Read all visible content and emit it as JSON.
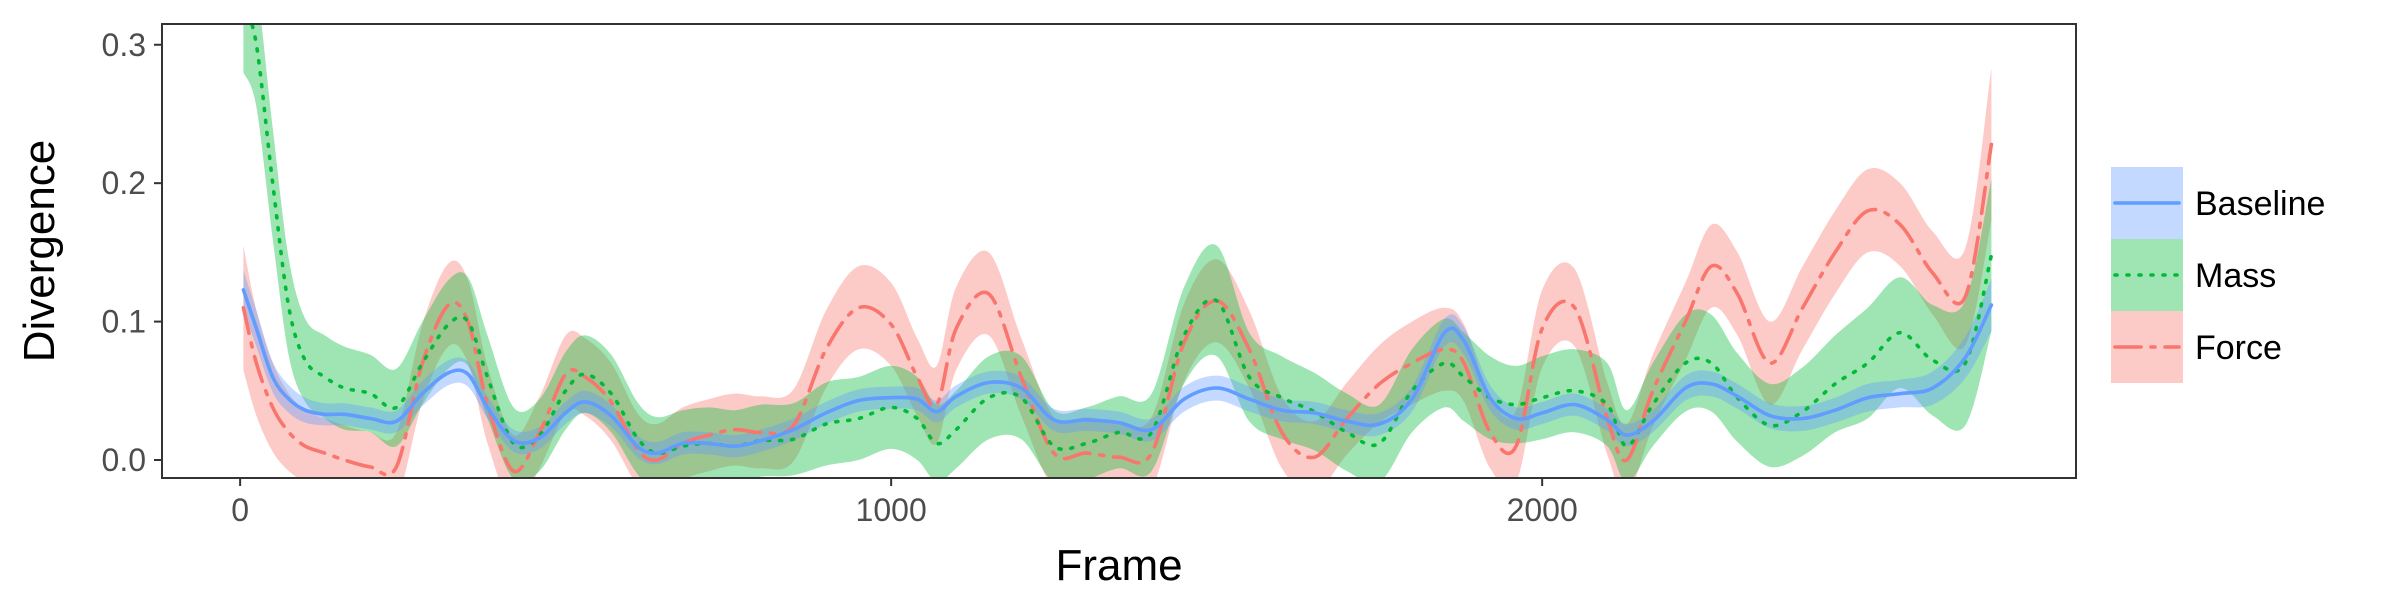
{
  "chart_data": {
    "type": "line",
    "title": "",
    "xlabel": "Frame",
    "ylabel": "Divergence",
    "xlim": [
      -120,
      2820
    ],
    "ylim": [
      -0.013,
      0.315
    ],
    "x_ticks": [
      0,
      1000,
      2000
    ],
    "x_tick_labels": [
      "0",
      "1000",
      "2000"
    ],
    "y_ticks": [
      0.0,
      0.1,
      0.2,
      0.3
    ],
    "y_tick_labels": [
      "0.0",
      "0.1",
      "0.2",
      "0.3"
    ],
    "grid": false,
    "legend_position": "right",
    "series": [
      {
        "name": "Baseline",
        "color": "#619CFF",
        "line_style": "solid",
        "x": [
          5,
          25,
          50,
          75,
          100,
          130,
          160,
          200,
          240,
          280,
          320,
          350,
          380,
          420,
          460,
          500,
          530,
          570,
          610,
          640,
          680,
          720,
          760,
          800,
          850,
          900,
          950,
          1000,
          1040,
          1070,
          1100,
          1150,
          1200,
          1250,
          1300,
          1350,
          1400,
          1450,
          1500,
          1550,
          1600,
          1650,
          1700,
          1750,
          1800,
          1850,
          1880,
          1920,
          1960,
          2000,
          2050,
          2100,
          2130,
          2170,
          2220,
          2260,
          2300,
          2350,
          2400,
          2450,
          2500,
          2550,
          2600,
          2650,
          2690
        ],
        "values": [
          0.123,
          0.095,
          0.06,
          0.044,
          0.036,
          0.033,
          0.033,
          0.03,
          0.028,
          0.048,
          0.063,
          0.062,
          0.038,
          0.014,
          0.016,
          0.034,
          0.042,
          0.032,
          0.01,
          0.005,
          0.012,
          0.012,
          0.01,
          0.014,
          0.022,
          0.034,
          0.043,
          0.045,
          0.044,
          0.035,
          0.046,
          0.056,
          0.052,
          0.029,
          0.029,
          0.027,
          0.022,
          0.044,
          0.052,
          0.044,
          0.036,
          0.034,
          0.028,
          0.026,
          0.044,
          0.092,
          0.086,
          0.045,
          0.03,
          0.034,
          0.04,
          0.029,
          0.018,
          0.028,
          0.052,
          0.055,
          0.046,
          0.032,
          0.03,
          0.036,
          0.045,
          0.048,
          0.052,
          0.074,
          0.112
        ],
        "band": [
          0.014,
          0.013,
          0.011,
          0.01,
          0.009,
          0.008,
          0.008,
          0.008,
          0.008,
          0.009,
          0.009,
          0.009,
          0.008,
          0.008,
          0.008,
          0.008,
          0.008,
          0.008,
          0.008,
          0.008,
          0.008,
          0.008,
          0.008,
          0.008,
          0.008,
          0.008,
          0.008,
          0.008,
          0.008,
          0.008,
          0.008,
          0.008,
          0.008,
          0.008,
          0.008,
          0.008,
          0.008,
          0.009,
          0.009,
          0.009,
          0.008,
          0.008,
          0.008,
          0.008,
          0.009,
          0.01,
          0.01,
          0.009,
          0.008,
          0.008,
          0.008,
          0.008,
          0.008,
          0.008,
          0.009,
          0.009,
          0.009,
          0.009,
          0.009,
          0.009,
          0.01,
          0.01,
          0.012,
          0.015,
          0.019
        ]
      },
      {
        "name": "Mass",
        "color": "#00BA38",
        "line_style": "dotted",
        "x": [
          5,
          25,
          50,
          75,
          100,
          130,
          160,
          200,
          240,
          280,
          320,
          350,
          380,
          420,
          460,
          500,
          530,
          570,
          610,
          640,
          680,
          720,
          760,
          800,
          850,
          900,
          950,
          1000,
          1040,
          1070,
          1100,
          1150,
          1200,
          1250,
          1300,
          1350,
          1400,
          1450,
          1500,
          1550,
          1600,
          1650,
          1700,
          1750,
          1800,
          1850,
          1880,
          1920,
          1960,
          2000,
          2050,
          2100,
          2130,
          2170,
          2220,
          2260,
          2300,
          2350,
          2400,
          2450,
          2500,
          2550,
          2600,
          2650,
          2690
        ],
        "values": [
          0.33,
          0.3,
          0.2,
          0.11,
          0.072,
          0.06,
          0.052,
          0.048,
          0.038,
          0.07,
          0.098,
          0.1,
          0.06,
          0.012,
          0.018,
          0.05,
          0.062,
          0.048,
          0.016,
          0.005,
          0.01,
          0.012,
          0.01,
          0.014,
          0.015,
          0.026,
          0.03,
          0.038,
          0.03,
          0.012,
          0.022,
          0.045,
          0.045,
          0.01,
          0.012,
          0.02,
          0.02,
          0.09,
          0.115,
          0.06,
          0.045,
          0.035,
          0.02,
          0.012,
          0.05,
          0.07,
          0.06,
          0.045,
          0.04,
          0.045,
          0.05,
          0.04,
          0.01,
          0.04,
          0.07,
          0.07,
          0.045,
          0.025,
          0.035,
          0.055,
          0.07,
          0.092,
          0.072,
          0.07,
          0.148
        ],
        "band": [
          0.05,
          0.045,
          0.04,
          0.035,
          0.03,
          0.03,
          0.03,
          0.028,
          0.028,
          0.03,
          0.032,
          0.032,
          0.03,
          0.026,
          0.026,
          0.028,
          0.028,
          0.028,
          0.026,
          0.026,
          0.026,
          0.026,
          0.026,
          0.026,
          0.026,
          0.03,
          0.03,
          0.03,
          0.03,
          0.028,
          0.028,
          0.03,
          0.03,
          0.026,
          0.026,
          0.026,
          0.028,
          0.035,
          0.04,
          0.032,
          0.03,
          0.028,
          0.028,
          0.028,
          0.03,
          0.032,
          0.032,
          0.03,
          0.028,
          0.03,
          0.03,
          0.03,
          0.026,
          0.03,
          0.035,
          0.035,
          0.032,
          0.03,
          0.032,
          0.035,
          0.04,
          0.04,
          0.04,
          0.045,
          0.055
        ]
      },
      {
        "name": "Force",
        "color": "#F8766D",
        "line_style": "dashdot",
        "x": [
          5,
          25,
          50,
          75,
          100,
          130,
          160,
          200,
          240,
          280,
          320,
          350,
          380,
          420,
          460,
          500,
          530,
          570,
          610,
          640,
          680,
          720,
          760,
          800,
          850,
          900,
          950,
          1000,
          1040,
          1070,
          1100,
          1150,
          1200,
          1250,
          1300,
          1350,
          1400,
          1450,
          1500,
          1550,
          1600,
          1650,
          1700,
          1750,
          1800,
          1850,
          1880,
          1920,
          1960,
          2000,
          2050,
          2100,
          2130,
          2170,
          2220,
          2260,
          2300,
          2350,
          2400,
          2450,
          2500,
          2550,
          2600,
          2650,
          2690
        ],
        "values": [
          0.11,
          0.07,
          0.038,
          0.02,
          0.01,
          0.005,
          0.0,
          -0.005,
          -0.005,
          0.07,
          0.112,
          0.1,
          0.04,
          -0.008,
          0.02,
          0.062,
          0.06,
          0.042,
          0.008,
          0.0,
          0.012,
          0.018,
          0.022,
          0.02,
          0.025,
          0.08,
          0.11,
          0.098,
          0.06,
          0.04,
          0.095,
          0.12,
          0.06,
          0.005,
          0.005,
          0.002,
          0.005,
          0.085,
          0.115,
          0.08,
          0.02,
          0.002,
          0.03,
          0.055,
          0.07,
          0.08,
          0.07,
          0.02,
          0.01,
          0.095,
          0.11,
          0.03,
          0.0,
          0.05,
          0.1,
          0.14,
          0.12,
          0.07,
          0.11,
          0.15,
          0.18,
          0.17,
          0.135,
          0.118,
          0.228
        ],
        "band": [
          0.045,
          0.038,
          0.032,
          0.028,
          0.026,
          0.025,
          0.025,
          0.025,
          0.025,
          0.028,
          0.03,
          0.03,
          0.028,
          0.026,
          0.026,
          0.028,
          0.028,
          0.028,
          0.026,
          0.026,
          0.026,
          0.026,
          0.026,
          0.026,
          0.026,
          0.028,
          0.03,
          0.03,
          0.028,
          0.028,
          0.03,
          0.03,
          0.028,
          0.026,
          0.026,
          0.026,
          0.026,
          0.028,
          0.03,
          0.028,
          0.026,
          0.026,
          0.026,
          0.028,
          0.03,
          0.03,
          0.028,
          0.026,
          0.026,
          0.028,
          0.028,
          0.026,
          0.026,
          0.026,
          0.028,
          0.03,
          0.03,
          0.03,
          0.03,
          0.03,
          0.03,
          0.03,
          0.03,
          0.035,
          0.055
        ]
      }
    ]
  }
}
